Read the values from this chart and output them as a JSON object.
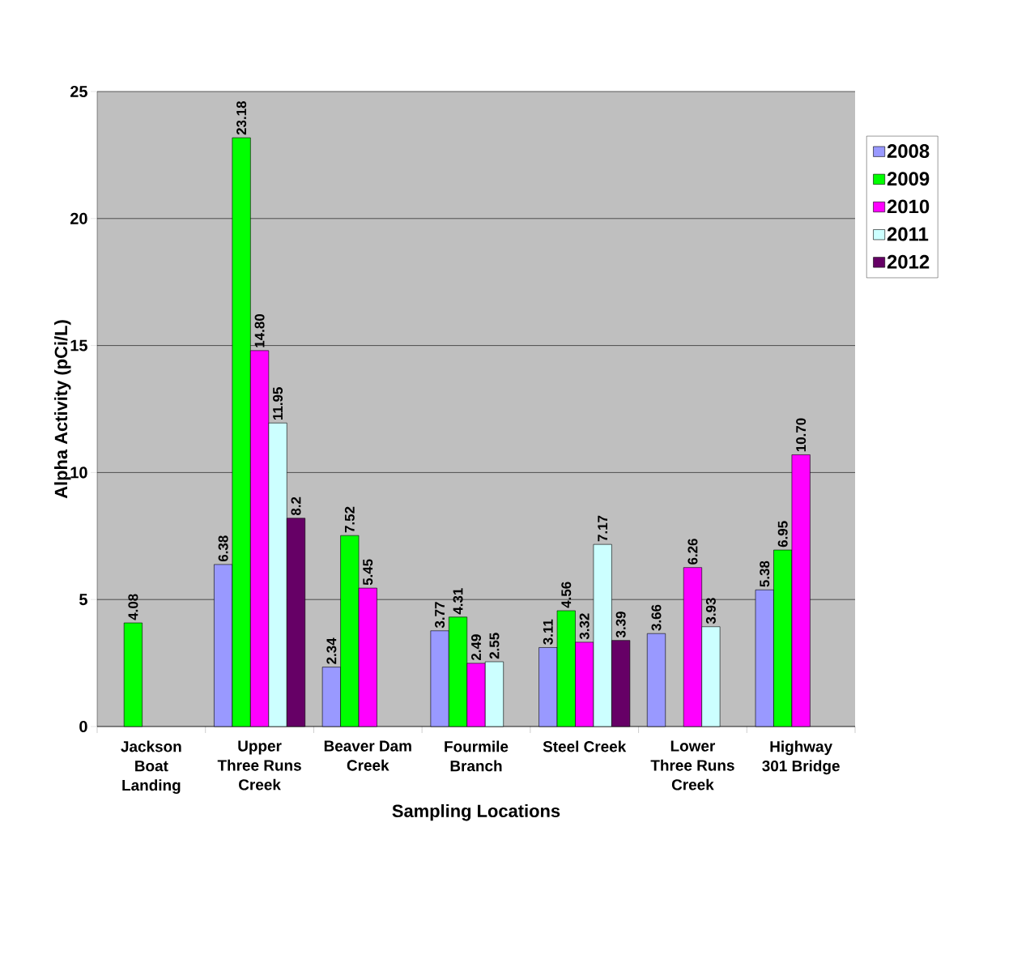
{
  "chart_data": {
    "type": "bar",
    "xlabel": "Sampling Locations",
    "ylabel": "Alpha Activity (pCi/L)",
    "categories": [
      "Jackson Boat Landing",
      "Upper Three Runs Creek",
      "Beaver Dam Creek",
      "Fourmile Branch",
      "Steel Creek",
      "Lower Three Runs Creek",
      "Highway 301 Bridge"
    ],
    "series": [
      {
        "name": "2008",
        "color": "#9999ff",
        "values": [
          null,
          6.38,
          2.34,
          3.77,
          3.11,
          3.66,
          5.38
        ],
        "value_labels": [
          null,
          "6.38",
          "2.34",
          "3.77",
          "3.11",
          "3.66",
          "5.38"
        ]
      },
      {
        "name": "2009",
        "color": "#00ff00",
        "values": [
          4.08,
          23.18,
          7.52,
          4.31,
          4.56,
          null,
          6.95
        ],
        "value_labels": [
          "4.08",
          "23.18",
          "7.52",
          "4.31",
          "4.56",
          null,
          "6.95"
        ]
      },
      {
        "name": "2010",
        "color": "#ff00ff",
        "values": [
          null,
          14.8,
          5.45,
          2.49,
          3.32,
          6.26,
          10.7
        ],
        "value_labels": [
          null,
          "14.80",
          "5.45",
          "2.49",
          "3.32",
          "6.26",
          "10.70"
        ]
      },
      {
        "name": "2011",
        "color": "#ccffff",
        "values": [
          null,
          11.95,
          null,
          2.55,
          7.17,
          3.93,
          null
        ],
        "value_labels": [
          null,
          "11.95",
          null,
          "2.55",
          "7.17",
          "3.93",
          null
        ]
      },
      {
        "name": "2012",
        "color": "#660066",
        "values": [
          null,
          8.2,
          null,
          null,
          3.39,
          null,
          null
        ],
        "value_labels": [
          null,
          "8.2",
          null,
          null,
          "3.39",
          null,
          null
        ]
      }
    ],
    "ylim": [
      0,
      25
    ],
    "yticks": [
      0,
      5,
      10,
      15,
      20,
      25
    ],
    "grid": "y",
    "legend": "right"
  }
}
